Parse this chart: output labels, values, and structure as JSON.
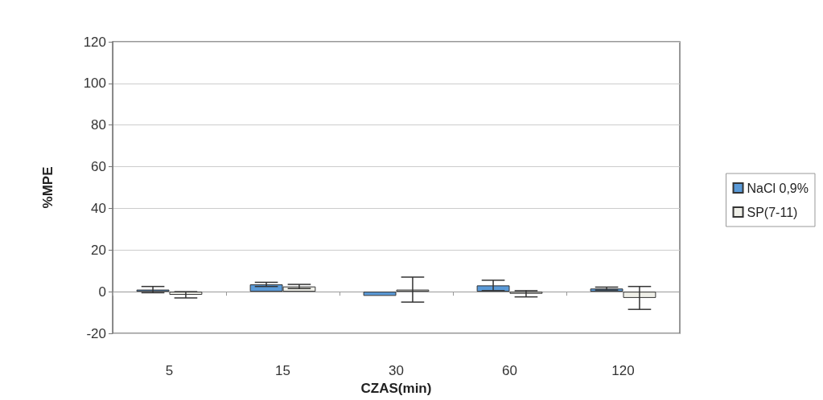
{
  "chart_data": {
    "type": "bar",
    "xlabel": "CZAS(min)",
    "ylabel": "%MPE",
    "categories": [
      "5",
      "15",
      "30",
      "60",
      "120"
    ],
    "series": [
      {
        "name": "NaCl 0,9%",
        "color": "#5a9ad8",
        "values": [
          1,
          3.5,
          -2,
          3,
          1.5
        ],
        "errors": [
          1.5,
          1,
          null,
          2.5,
          0.7
        ]
      },
      {
        "name": "SP(7-11)",
        "color": "#efefe8",
        "values": [
          -1.5,
          2.5,
          1,
          -1,
          -3
        ],
        "errors": [
          1.5,
          1,
          6,
          1.5,
          5.5
        ]
      }
    ],
    "ylim": [
      -20,
      120
    ],
    "yticks": [
      -20,
      0,
      20,
      40,
      60,
      80,
      100,
      120
    ],
    "grid": "y",
    "legend": "right"
  }
}
